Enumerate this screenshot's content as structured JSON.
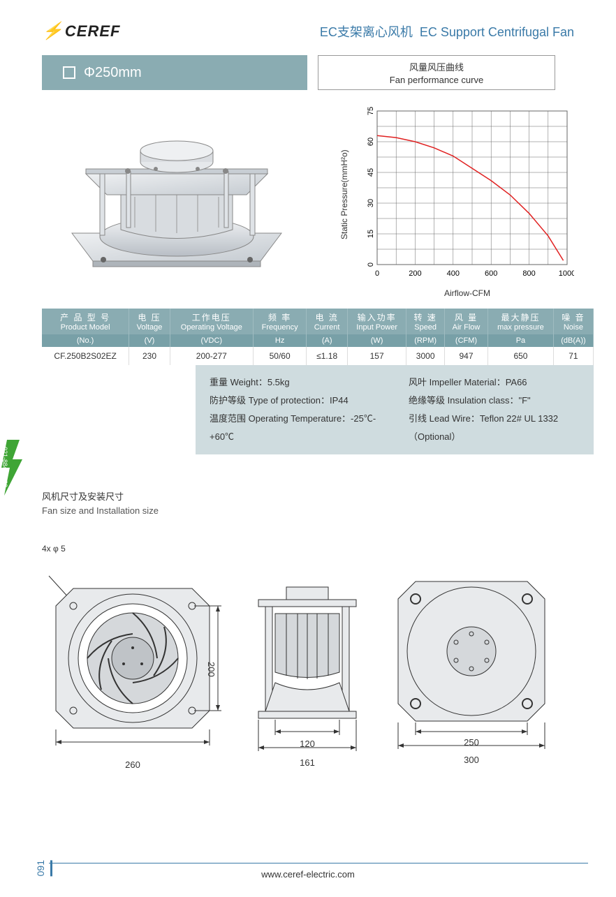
{
  "brand": "CEREF",
  "titleCn": "EC支架离心风机",
  "titleEn": "EC Support Centrifugal Fan",
  "sizeLabel": "Φ250mm",
  "curveLabelCn": "风量风压曲线",
  "curveLabelEn": "Fan performance curve",
  "chart": {
    "type": "line",
    "yLabel": "Static Pressure(mmH²o)",
    "xLabel": "Airflow-CFM",
    "xTicks": [
      0,
      200,
      400,
      600,
      800,
      1000
    ],
    "yTicks": [
      0,
      15,
      30,
      45,
      60,
      75
    ],
    "xlim": [
      0,
      1000
    ],
    "ylim": [
      0,
      75
    ],
    "lineColor": "#e02020",
    "gridColor": "#666",
    "fontSize": 11,
    "points": [
      [
        0,
        63
      ],
      [
        100,
        62
      ],
      [
        200,
        60
      ],
      [
        300,
        57
      ],
      [
        400,
        53
      ],
      [
        500,
        47
      ],
      [
        600,
        41
      ],
      [
        700,
        34
      ],
      [
        800,
        25
      ],
      [
        900,
        14
      ],
      [
        980,
        2
      ]
    ]
  },
  "columns": [
    {
      "cn": "产 品 型 号",
      "en": "Product Model",
      "unit": "(No.)"
    },
    {
      "cn": "电 压",
      "en": "Voltage",
      "unit": "(V)"
    },
    {
      "cn": "工作电压",
      "en": "Operating Voltage",
      "unit": "(VDC)"
    },
    {
      "cn": "频 率",
      "en": "Frequency",
      "unit": "Hz"
    },
    {
      "cn": "电 流",
      "en": "Current",
      "unit": "(A)"
    },
    {
      "cn": "输入功率",
      "en": "Input Power",
      "unit": "(W)"
    },
    {
      "cn": "转 速",
      "en": "Speed",
      "unit": "(RPM)"
    },
    {
      "cn": "风 量",
      "en": "Air Flow",
      "unit": "(CFM)"
    },
    {
      "cn": "最大静压",
      "en": "max pressure",
      "unit": "Pa"
    },
    {
      "cn": "噪 音",
      "en": "Noise",
      "unit": "(dB(A))"
    }
  ],
  "row": [
    "CF.250B2S02EZ",
    "230",
    "200-277",
    "50/60",
    "≤1.18",
    "157",
    "3000",
    "947",
    "650",
    "71"
  ],
  "extras": {
    "weight": "重量 Weight：5.5kg",
    "protection": "防护等级 Type of protection：IP44",
    "temp": "温度范围 Operating Temperature：-25℃-+60℃",
    "impeller": "风叶 Impeller Material：PA66",
    "insulation": "绝缘等级 Insulation class：\"F\"",
    "lead": "引线 Lead Wire：Teflon 22# UL 1332（Optional）"
  },
  "installTitleCn": "风机尺寸及安装尺寸",
  "installTitleEn": "Fan size and Installation size",
  "holeNote": "4x φ 5",
  "dims": {
    "d260": "260",
    "d200": "200",
    "d120": "120",
    "d161": "161",
    "d250": "250",
    "d300": "300"
  },
  "sideText": "021-88403223",
  "pageNum": "091",
  "website": "www.ceref-electric.com"
}
